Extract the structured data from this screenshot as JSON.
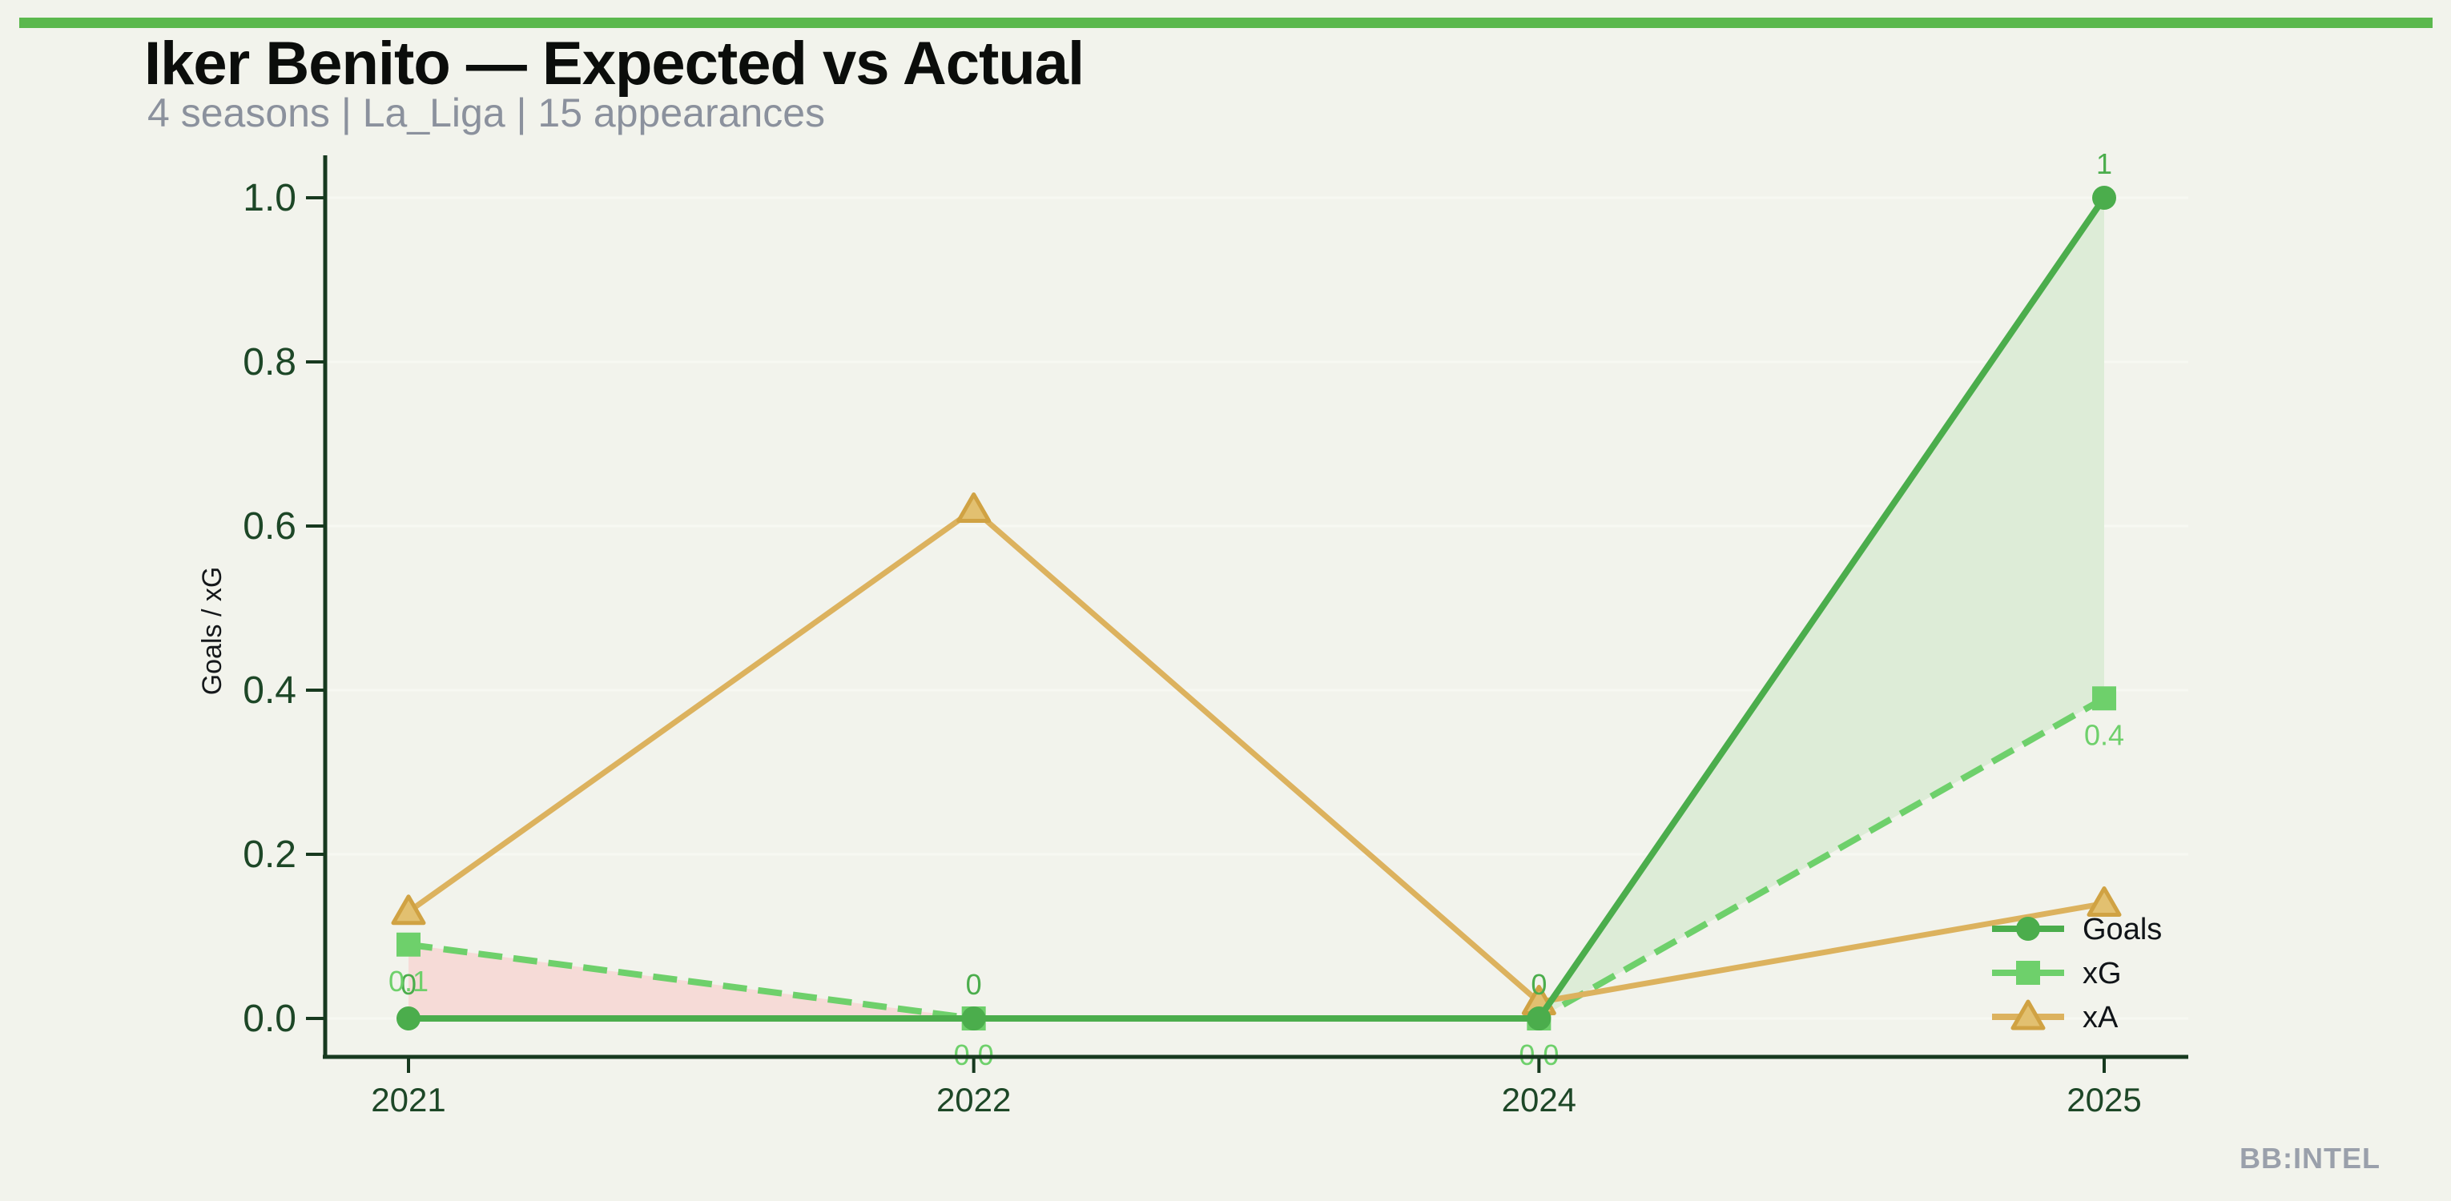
{
  "page": {
    "background": "#f2f3ec",
    "accent_bar_color": "#5bb84d",
    "watermark": "BB:INTEL"
  },
  "header": {
    "title": "Iker Benito — Expected vs Actual",
    "subtitle": "4 seasons | La_Liga | 15 appearances"
  },
  "chart_data": {
    "type": "line",
    "title": "Iker Benito — Expected vs Actual",
    "categories": [
      "2021",
      "2022",
      "2024",
      "2025"
    ],
    "series": [
      {
        "name": "Goals",
        "marker": "circle",
        "line_style": "solid",
        "color": "#4bad4c",
        "values": [
          0,
          0,
          0,
          1
        ],
        "point_labels": [
          "0",
          "0",
          "0",
          "1"
        ],
        "label_side": "above"
      },
      {
        "name": "xG",
        "marker": "square",
        "line_style": "dashed",
        "color": "#6ed06b",
        "values": [
          0.09,
          0.0,
          0.0,
          0.39
        ],
        "point_labels": [
          "0.1",
          "0.0",
          "0.0",
          "0.4"
        ],
        "label_side": "below"
      },
      {
        "name": "xA",
        "marker": "triangle",
        "line_style": "solid",
        "color": "#dcb25e",
        "marker_fill": "#e2c070",
        "marker_edge": "#d0a243",
        "values": [
          0.13,
          0.62,
          0.02,
          0.14
        ],
        "point_labels": [],
        "label_side": "none"
      }
    ],
    "xlabel": "",
    "ylabel": "Goals / xG",
    "ylim": [
      0,
      1.05
    ],
    "yticks": [
      0.0,
      0.2,
      0.4,
      0.6,
      0.8,
      1.0
    ],
    "ytick_labels": [
      "0.0",
      "0.2",
      "0.4",
      "0.6",
      "0.8",
      "1.0"
    ],
    "grid": "horizontal-faint",
    "legend": {
      "position": "lower-right",
      "entries": [
        "Goals",
        "xG",
        "xA"
      ]
    },
    "fill_between": {
      "pair": [
        "Goals",
        "xG"
      ],
      "goals_above_color": "#ddecd7",
      "xg_above_color": "#f6dbd7"
    },
    "axis_text_color": "#1d4727",
    "spine_color": "#17391f",
    "gridline_color": "#f7f8f2"
  }
}
